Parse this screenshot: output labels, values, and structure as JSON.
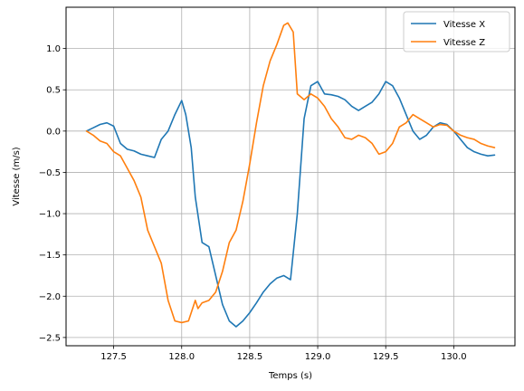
{
  "chart_data": {
    "type": "line",
    "xlabel": "Temps (s)",
    "ylabel": "Vitesse (m/s)",
    "xlim": [
      127.15,
      130.45
    ],
    "ylim": [
      -2.6,
      1.5
    ],
    "xticks": [
      127.5,
      128.0,
      128.5,
      129.0,
      129.5,
      130.0
    ],
    "xtick_labels": [
      "127.5",
      "128.0",
      "128.5",
      "129.0",
      "129.5",
      "130.0"
    ],
    "yticks": [
      -2.5,
      -2.0,
      -1.5,
      -1.0,
      -0.5,
      0.0,
      0.5,
      1.0
    ],
    "ytick_labels": [
      "−2.5",
      "−2.0",
      "−1.5",
      "−1.0",
      "−0.5",
      "0.0",
      "0.5",
      "1.0"
    ],
    "grid": true,
    "legend_position": "top-right",
    "series": [
      {
        "name": "Vitesse X",
        "color": "#1f77b4",
        "x": [
          127.3,
          127.35,
          127.4,
          127.45,
          127.5,
          127.55,
          127.6,
          127.65,
          127.7,
          127.75,
          127.8,
          127.85,
          127.9,
          127.95,
          128.0,
          128.03,
          128.07,
          128.1,
          128.15,
          128.2,
          128.25,
          128.3,
          128.35,
          128.4,
          128.45,
          128.5,
          128.55,
          128.6,
          128.65,
          128.7,
          128.75,
          128.8,
          128.85,
          128.9,
          128.95,
          129.0,
          129.05,
          129.1,
          129.15,
          129.2,
          129.25,
          129.3,
          129.35,
          129.4,
          129.45,
          129.5,
          129.55,
          129.6,
          129.65,
          129.7,
          129.75,
          129.8,
          129.85,
          129.9,
          129.95,
          130.0,
          130.05,
          130.1,
          130.15,
          130.2,
          130.25,
          130.3
        ],
        "y": [
          0.0,
          0.04,
          0.08,
          0.1,
          0.06,
          -0.15,
          -0.22,
          -0.24,
          -0.28,
          -0.3,
          -0.32,
          -0.1,
          0.0,
          0.2,
          0.37,
          0.2,
          -0.2,
          -0.8,
          -1.35,
          -1.4,
          -1.75,
          -2.1,
          -2.3,
          -2.37,
          -2.3,
          -2.2,
          -2.08,
          -1.95,
          -1.85,
          -1.78,
          -1.75,
          -1.8,
          -1.0,
          0.15,
          0.55,
          0.6,
          0.45,
          0.44,
          0.42,
          0.38,
          0.3,
          0.25,
          0.3,
          0.35,
          0.45,
          0.6,
          0.55,
          0.4,
          0.2,
          0.0,
          -0.1,
          -0.05,
          0.05,
          0.1,
          0.08,
          0.0,
          -0.1,
          -0.2,
          -0.25,
          -0.28,
          -0.3,
          -0.29
        ]
      },
      {
        "name": "Vitesse Z",
        "color": "#ff7f0e",
        "x": [
          127.3,
          127.35,
          127.4,
          127.45,
          127.5,
          127.55,
          127.6,
          127.65,
          127.7,
          127.75,
          127.8,
          127.85,
          127.9,
          127.95,
          128.0,
          128.05,
          128.1,
          128.12,
          128.15,
          128.2,
          128.25,
          128.3,
          128.35,
          128.4,
          128.45,
          128.5,
          128.55,
          128.6,
          128.65,
          128.7,
          128.75,
          128.78,
          128.82,
          128.85,
          128.9,
          128.95,
          129.0,
          129.05,
          129.1,
          129.15,
          129.2,
          129.25,
          129.3,
          129.35,
          129.4,
          129.45,
          129.5,
          129.55,
          129.6,
          129.65,
          129.7,
          129.75,
          129.8,
          129.85,
          129.9,
          129.95,
          130.0,
          130.05,
          130.1,
          130.15,
          130.2,
          130.25,
          130.3
        ],
        "y": [
          0.0,
          -0.05,
          -0.12,
          -0.15,
          -0.25,
          -0.3,
          -0.45,
          -0.6,
          -0.8,
          -1.2,
          -1.4,
          -1.6,
          -2.05,
          -2.3,
          -2.32,
          -2.3,
          -2.05,
          -2.15,
          -2.08,
          -2.05,
          -1.95,
          -1.7,
          -1.35,
          -1.2,
          -0.85,
          -0.4,
          0.1,
          0.55,
          0.85,
          1.05,
          1.28,
          1.31,
          1.2,
          0.45,
          0.38,
          0.45,
          0.4,
          0.3,
          0.15,
          0.05,
          -0.08,
          -0.1,
          -0.05,
          -0.08,
          -0.15,
          -0.28,
          -0.25,
          -0.15,
          0.05,
          0.1,
          0.2,
          0.15,
          0.1,
          0.05,
          0.08,
          0.07,
          0.0,
          -0.05,
          -0.08,
          -0.1,
          -0.15,
          -0.18,
          -0.2
        ]
      }
    ]
  }
}
